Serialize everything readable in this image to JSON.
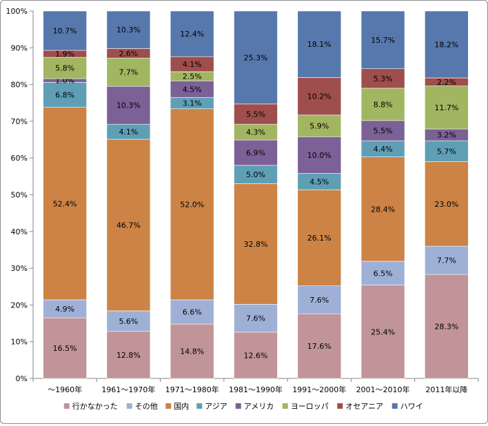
{
  "chart_data": {
    "type": "bar",
    "stacked": true,
    "percent_stacked": true,
    "title": "",
    "xlabel": "",
    "ylabel": "",
    "ylim": [
      0,
      100
    ],
    "y_ticks": [
      "0%",
      "10%",
      "20%",
      "30%",
      "40%",
      "50%",
      "60%",
      "70%",
      "80%",
      "90%",
      "100%"
    ],
    "grid": false,
    "legend_position": "bottom",
    "categories": [
      "～1960年",
      "1961～1970年",
      "1971～1980年",
      "1981～1990年",
      "1991～2000年",
      "2001～2010年",
      "2011年以降"
    ],
    "series": [
      {
        "name": "行かなかった",
        "color": "#c09498",
        "values": [
          16.5,
          12.8,
          14.8,
          12.6,
          17.6,
          25.4,
          28.3
        ],
        "labels": [
          "16.5%",
          "12.8%",
          "14.8%",
          "12.6%",
          "17.6%",
          "25.4%",
          "28.3%"
        ]
      },
      {
        "name": "その他",
        "color": "#9fb0d6",
        "values": [
          4.9,
          5.6,
          6.6,
          7.6,
          7.6,
          6.5,
          7.7
        ],
        "labels": [
          "4.9%",
          "5.6%",
          "6.6%",
          "7.6%",
          "7.6%",
          "6.5%",
          "7.7%"
        ]
      },
      {
        "name": "国内",
        "color": "#cc8345",
        "values": [
          52.4,
          46.7,
          52.0,
          32.8,
          26.1,
          28.4,
          23.0
        ],
        "labels": [
          "52.4%",
          "46.7%",
          "52.0%",
          "32.8%",
          "26.1%",
          "28.4%",
          "23.0%"
        ]
      },
      {
        "name": "アジア",
        "color": "#5f9fb6",
        "values": [
          6.8,
          4.1,
          3.1,
          5.0,
          4.5,
          4.4,
          5.7
        ],
        "labels": [
          "6.8%",
          "4.1%",
          "3.1%",
          "5.0%",
          "4.5%",
          "4.4%",
          "5.7%"
        ]
      },
      {
        "name": "アメリカ",
        "color": "#7b6196",
        "values": [
          1.0,
          10.3,
          4.5,
          6.9,
          10.0,
          5.5,
          3.2
        ],
        "labels": [
          "1.0%",
          "10.3%",
          "4.5%",
          "6.9%",
          "10.0%",
          "5.5%",
          "3.2%"
        ]
      },
      {
        "name": "ヨーロッパ",
        "color": "#a2b561",
        "values": [
          5.8,
          7.7,
          2.5,
          4.3,
          5.9,
          8.8,
          11.7
        ],
        "labels": [
          "5.8%",
          "7.7%",
          "2.5%",
          "4.3%",
          "5.9%",
          "8.8%",
          "11.7%"
        ]
      },
      {
        "name": "オセアニア",
        "color": "#9e4e4c",
        "values": [
          1.9,
          2.6,
          4.1,
          5.5,
          10.2,
          5.3,
          2.2
        ],
        "labels": [
          "1.9%",
          "2.6%",
          "4.1%",
          "5.5%",
          "10.2%",
          "5.3%",
          "2.2%"
        ]
      },
      {
        "name": "ハワイ",
        "color": "#5778ac",
        "values": [
          10.7,
          10.3,
          12.4,
          25.3,
          18.1,
          15.7,
          18.2
        ],
        "labels": [
          "10.7%",
          "10.3%",
          "12.4%",
          "25.3%",
          "18.1%",
          "15.7%",
          "18.2%"
        ]
      }
    ]
  }
}
